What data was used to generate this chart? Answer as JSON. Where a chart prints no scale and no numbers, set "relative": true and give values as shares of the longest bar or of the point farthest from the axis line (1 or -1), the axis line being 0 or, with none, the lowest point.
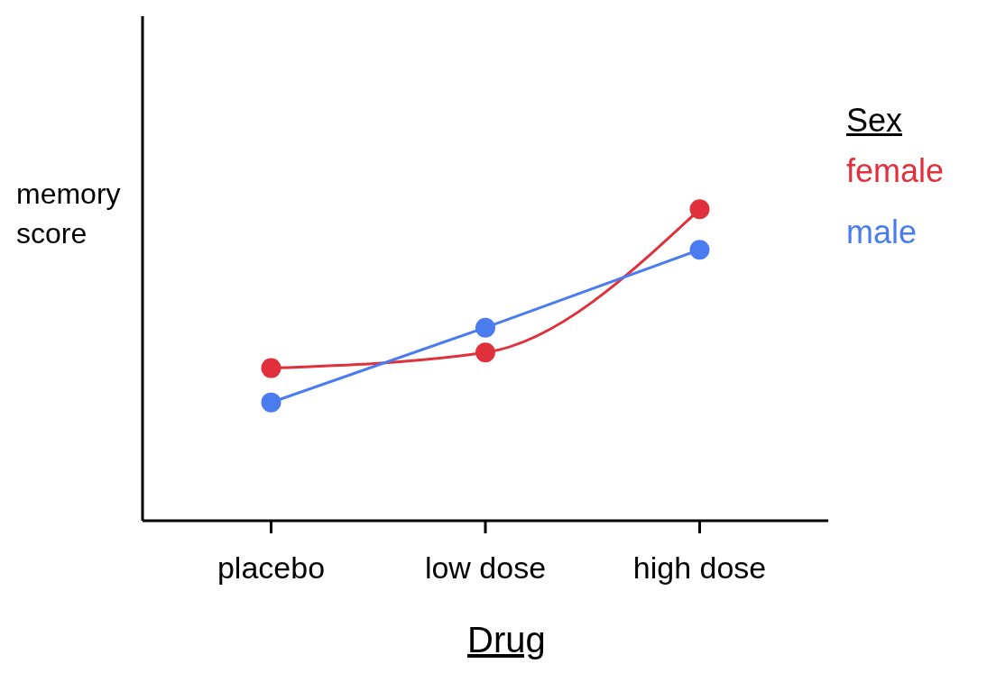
{
  "chart_data": {
    "type": "line",
    "xlabel": "Drug",
    "ylabel": "memory score",
    "legend_title": "Sex",
    "legend": "right",
    "relative": true,
    "marker": "circle",
    "categories": [
      "placebo",
      "low dose",
      "high dose"
    ],
    "series": [
      {
        "name": "female",
        "color": "#e0303c",
        "values": [
          0.49,
          0.54,
          1
        ]
      },
      {
        "name": "male",
        "color": "#4a7cf0",
        "values": [
          0.38,
          0.62,
          0.87
        ]
      }
    ]
  }
}
